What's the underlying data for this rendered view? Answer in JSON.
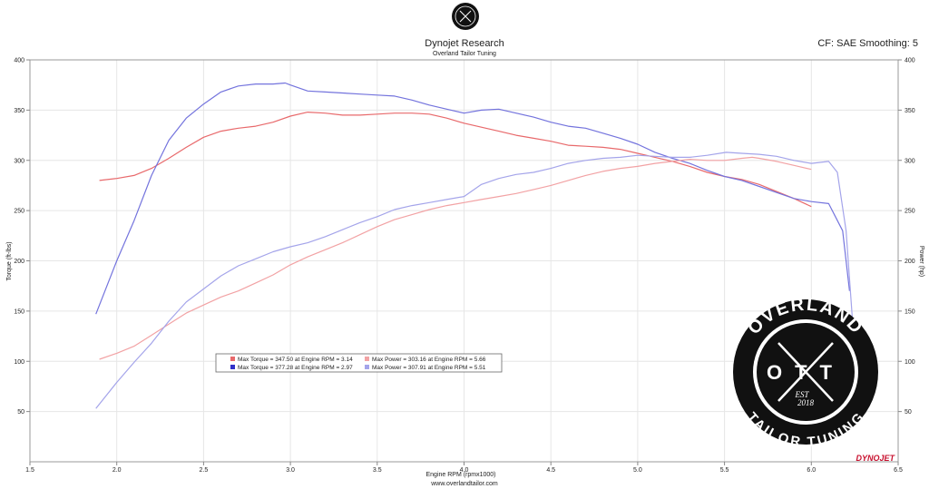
{
  "header": {
    "title": "Dynojet Research",
    "subtitle": "Overland Tailor Tuning",
    "cf_smoothing": "CF: SAE Smoothing: 5"
  },
  "footer": {
    "website": "www.overlandtailor.com"
  },
  "brand": {
    "badge_top": "OVERLAND",
    "badge_mid": "OTT",
    "badge_est": "EST",
    "badge_year": "2018",
    "badge_bottom": "TAILOR TUNING",
    "dynojet_logo": "DYNOJET"
  },
  "colors": {
    "torque_red": "#e8696b",
    "torque_blue": "#7373dd",
    "power_red": "#f2a2a4",
    "power_blue": "#a4a4ea",
    "grid": "#e6e6e6"
  },
  "chart_data": {
    "type": "line",
    "title": "Dynojet Research",
    "subtitle": "Overland Tailor Tuning",
    "xlabel": "Engine RPM (rpmx1000)",
    "ylabel_left": "Torque (ft-lbs)",
    "ylabel_right": "Power (hp)",
    "xlim": [
      1.5,
      6.5
    ],
    "ylim": [
      0,
      400
    ],
    "x_ticks": [
      "1.5",
      "2.0",
      "2.5",
      "3.0",
      "3.5",
      "4.0",
      "4.5",
      "5.0",
      "5.5",
      "6.0",
      "6.5"
    ],
    "y_ticks": [
      "50",
      "100",
      "150",
      "200",
      "250",
      "300",
      "350",
      "400"
    ],
    "grid": true,
    "legend": [
      {
        "text": "Max Torque = 347.50 at Engine RPM = 3.14",
        "color": "#e8696b"
      },
      {
        "text": "Max Torque = 377.28 at Engine RPM = 2.97",
        "color": "#3030c8"
      },
      {
        "text": "Max Power = 303.16 at Engine RPM = 5.66",
        "color": "#f2a2a4"
      },
      {
        "text": "Max Power = 307.91 at Engine RPM = 5.51",
        "color": "#a4a4ea"
      }
    ],
    "series": [
      {
        "color": "#e8696b",
        "x": [
          1.9,
          2.0,
          2.1,
          2.2,
          2.3,
          2.4,
          2.5,
          2.6,
          2.7,
          2.8,
          2.9,
          3.0,
          3.1,
          3.2,
          3.3,
          3.4,
          3.5,
          3.6,
          3.7,
          3.8,
          3.9,
          4.0,
          4.1,
          4.2,
          4.3,
          4.4,
          4.5,
          4.6,
          4.7,
          4.8,
          4.9,
          5.0,
          5.1,
          5.2,
          5.3,
          5.4,
          5.5,
          5.6,
          5.7,
          5.8,
          5.9,
          6.0
        ],
        "y": [
          280,
          282,
          285,
          292,
          302,
          313,
          323,
          329,
          332,
          334,
          338,
          344,
          348,
          347,
          345,
          345,
          346,
          347,
          347,
          346,
          342,
          337,
          333,
          329,
          325,
          322,
          319,
          315,
          314,
          313,
          311,
          307,
          303,
          299,
          294,
          288,
          284,
          281,
          276,
          269,
          262,
          254
        ]
      },
      {
        "color": "#7373dd",
        "x": [
          1.88,
          2.0,
          2.1,
          2.2,
          2.3,
          2.4,
          2.5,
          2.6,
          2.7,
          2.8,
          2.9,
          2.97,
          3.0,
          3.1,
          3.2,
          3.3,
          3.4,
          3.5,
          3.6,
          3.7,
          3.8,
          3.9,
          4.0,
          4.1,
          4.2,
          4.3,
          4.4,
          4.5,
          4.6,
          4.7,
          4.8,
          4.9,
          5.0,
          5.1,
          5.2,
          5.3,
          5.4,
          5.5,
          5.6,
          5.7,
          5.8,
          5.9,
          6.0,
          6.1,
          6.18,
          6.22
        ],
        "y": [
          147,
          200,
          240,
          285,
          320,
          342,
          356,
          368,
          374,
          376,
          376,
          377,
          375,
          369,
          368,
          367,
          366,
          365,
          364,
          360,
          355,
          351,
          347,
          350,
          351,
          347,
          343,
          338,
          334,
          332,
          327,
          322,
          316,
          308,
          302,
          297,
          290,
          284,
          280,
          274,
          268,
          262,
          259,
          257,
          230,
          170
        ]
      },
      {
        "color": "#f2a2a4",
        "x": [
          1.9,
          2.0,
          2.1,
          2.2,
          2.3,
          2.4,
          2.5,
          2.6,
          2.7,
          2.8,
          2.9,
          3.0,
          3.1,
          3.2,
          3.3,
          3.4,
          3.5,
          3.6,
          3.7,
          3.8,
          3.9,
          4.0,
          4.1,
          4.2,
          4.3,
          4.4,
          4.5,
          4.6,
          4.7,
          4.8,
          4.9,
          5.0,
          5.1,
          5.2,
          5.3,
          5.4,
          5.5,
          5.6,
          5.66,
          5.7,
          5.8,
          5.9,
          6.0
        ],
        "y": [
          102,
          108,
          115,
          126,
          137,
          148,
          156,
          164,
          170,
          178,
          186,
          196,
          204,
          211,
          218,
          226,
          234,
          241,
          246,
          251,
          255,
          258,
          261,
          264,
          267,
          271,
          275,
          280,
          285,
          289,
          292,
          294,
          297,
          299,
          301,
          300,
          300,
          302,
          303,
          302,
          299,
          295,
          291
        ]
      },
      {
        "color": "#a4a4ea",
        "x": [
          1.88,
          2.0,
          2.1,
          2.2,
          2.3,
          2.4,
          2.5,
          2.6,
          2.7,
          2.8,
          2.9,
          3.0,
          3.1,
          3.2,
          3.3,
          3.4,
          3.5,
          3.6,
          3.7,
          3.8,
          3.9,
          4.0,
          4.1,
          4.2,
          4.3,
          4.4,
          4.5,
          4.6,
          4.7,
          4.8,
          4.9,
          5.0,
          5.1,
          5.2,
          5.3,
          5.4,
          5.51,
          5.6,
          5.7,
          5.8,
          5.9,
          6.0,
          6.1,
          6.15,
          6.2,
          6.25
        ],
        "y": [
          53,
          79,
          99,
          118,
          140,
          159,
          172,
          185,
          195,
          202,
          209,
          214,
          218,
          224,
          231,
          238,
          244,
          251,
          255,
          258,
          261,
          264,
          276,
          282,
          286,
          288,
          292,
          297,
          300,
          302,
          303,
          305,
          304,
          303,
          303,
          305,
          308,
          307,
          306,
          304,
          300,
          297,
          299,
          288,
          230,
          110
        ]
      }
    ]
  }
}
